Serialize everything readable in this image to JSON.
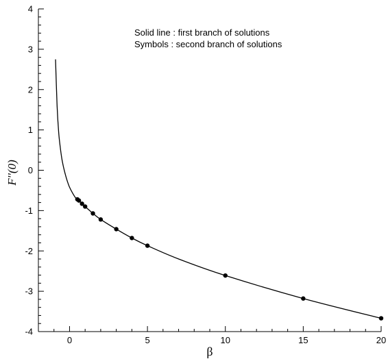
{
  "chart_data": {
    "type": "line",
    "xlabel": "β",
    "ylabel": "F''(0)",
    "xlim": [
      -2,
      20
    ],
    "ylim": [
      -4,
      4
    ],
    "x_ticks": [
      0,
      5,
      10,
      15,
      20
    ],
    "y_ticks": [
      -4,
      -3,
      -2,
      -1,
      0,
      1,
      2,
      3,
      4
    ],
    "x_tick_labels": [
      "0",
      "5",
      "10",
      "15",
      "20"
    ],
    "y_tick_labels": [
      "-4",
      "-3",
      "-2",
      "-1",
      "0",
      "1",
      "2",
      "3",
      "4"
    ],
    "annotations": [
      "Solid line : first branch of solutions",
      "Symbols  : second branch of solutions"
    ],
    "grid": false,
    "series": [
      {
        "style": "solid-line",
        "x": [
          -0.9,
          -0.8,
          -0.7,
          -0.6,
          -0.5,
          -0.4,
          -0.3,
          -0.2,
          -0.1,
          0.0,
          0.2,
          0.4,
          0.6,
          0.8,
          1.0,
          1.5,
          2.0,
          3.0,
          4.0,
          5.0,
          7.0,
          10.0,
          15.0,
          20.0
        ],
        "y": [
          2.75,
          1.6,
          0.95,
          0.58,
          0.3,
          0.1,
          -0.06,
          -0.2,
          -0.32,
          -0.42,
          -0.57,
          -0.69,
          -0.75,
          -0.83,
          -0.9,
          -1.07,
          -1.22,
          -1.46,
          -1.68,
          -1.87,
          -2.2,
          -2.61,
          -3.18,
          -3.67
        ]
      },
      {
        "style": "circle-symbols",
        "x": [
          0.5,
          0.6,
          0.8,
          1.0,
          1.5,
          2.0,
          3.0,
          4.0,
          5.0,
          10.0,
          15.0,
          20.0
        ],
        "y": [
          -0.72,
          -0.75,
          -0.83,
          -0.9,
          -1.07,
          -1.22,
          -1.46,
          -1.68,
          -1.87,
          -2.61,
          -3.18,
          -3.67
        ]
      }
    ]
  }
}
